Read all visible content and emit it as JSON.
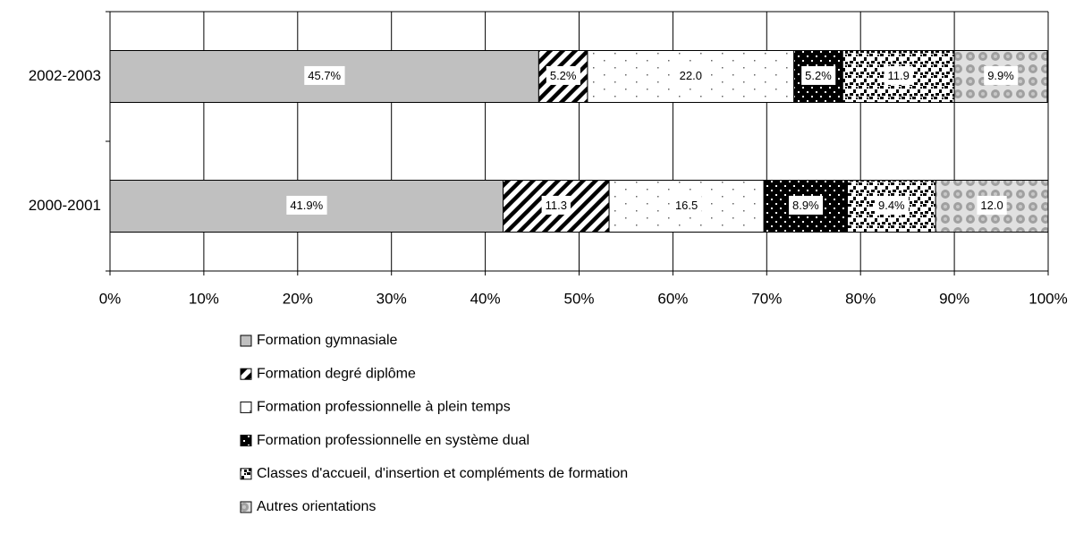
{
  "chart_data": {
    "type": "stacked-bar-horizontal",
    "categories": [
      "2002-2003",
      "2000-2001"
    ],
    "series": [
      {
        "name": "Formation gymnasiale",
        "color": "#c0c0c0",
        "values": [
          45.7,
          41.9
        ],
        "value_labels": [
          "45.7%",
          "41.9%"
        ]
      },
      {
        "name": "Formation degré diplôme",
        "color": "#000000",
        "values": [
          5.2,
          11.3
        ],
        "value_labels": [
          "5.2%",
          "11.3"
        ]
      },
      {
        "name": "Formation professionnelle à plein temps",
        "color": "#ffffff",
        "values": [
          22.0,
          16.5
        ],
        "value_labels": [
          "22.0",
          "16.5"
        ]
      },
      {
        "name": "Formation professionnelle en système dual",
        "color": "#000000",
        "values": [
          5.2,
          8.9
        ],
        "value_labels": [
          "5.2%",
          "8.9%"
        ]
      },
      {
        "name": "Classes d'accueil, d'insertion et compléments de formation",
        "color": "#000000",
        "values": [
          11.9,
          9.4
        ],
        "value_labels": [
          "11.9",
          "9.4%"
        ]
      },
      {
        "name": "Autres orientations",
        "color": "#a0a0a0",
        "values": [
          9.9,
          12.0
        ],
        "value_labels": [
          "9.9%",
          "12.0"
        ]
      }
    ],
    "xlim": [
      0,
      100
    ],
    "xticks": [
      {
        "value": 0,
        "label": "0%"
      },
      {
        "value": 10,
        "label": "10%"
      },
      {
        "value": 20,
        "label": "20%"
      },
      {
        "value": 30,
        "label": "30%"
      },
      {
        "value": 40,
        "label": "40%"
      },
      {
        "value": 50,
        "label": "50%"
      },
      {
        "value": 60,
        "label": "60%"
      },
      {
        "value": 70,
        "label": "70%"
      },
      {
        "value": 80,
        "label": "80%"
      },
      {
        "value": 90,
        "label": "90%"
      },
      {
        "value": 100,
        "label": "100%"
      }
    ],
    "grid": true
  }
}
